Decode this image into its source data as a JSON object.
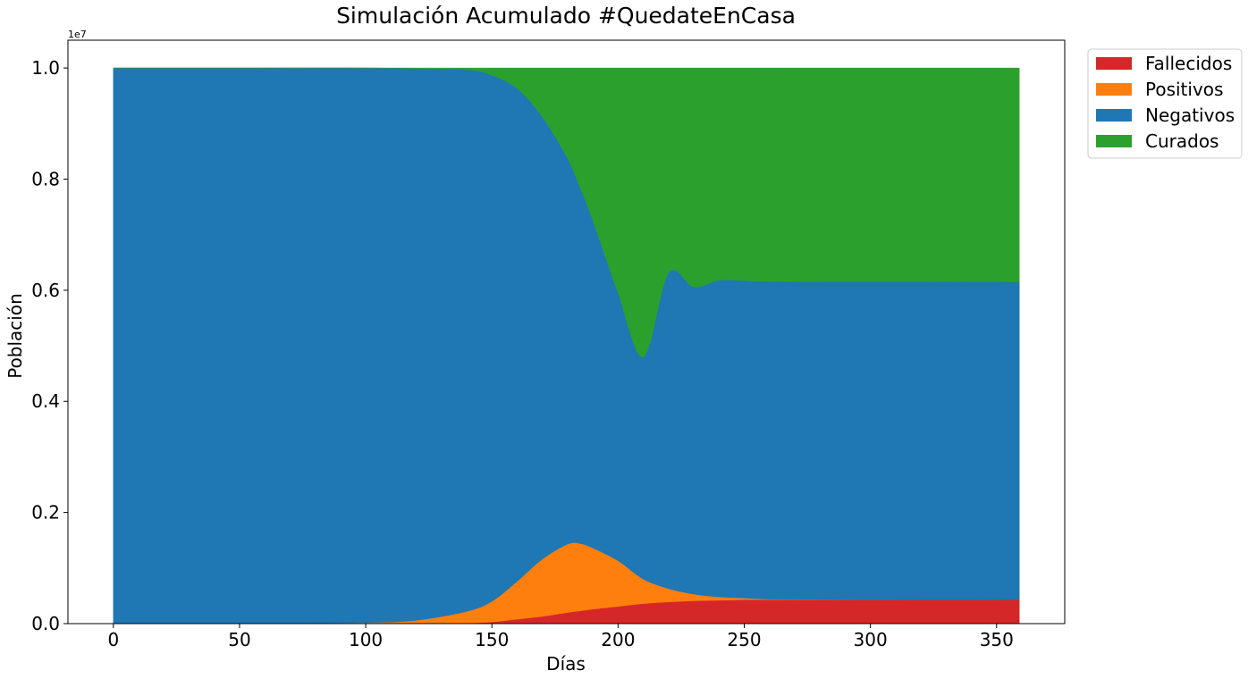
{
  "chart_data": {
    "type": "area",
    "stacked": true,
    "title": "Simulación Acumulado #QuedateEnCasa",
    "xlabel": "Días",
    "ylabel": "Población",
    "y_offset_label": "1e7",
    "xlim": [
      -18,
      377
    ],
    "ylim": [
      0,
      1.05
    ],
    "xticks": [
      0,
      50,
      100,
      150,
      200,
      250,
      300,
      350
    ],
    "xtick_labels": [
      "0",
      "50",
      "100",
      "150",
      "200",
      "250",
      "300",
      "350"
    ],
    "yticks": [
      0,
      0.2,
      0.4,
      0.6,
      0.8,
      1.0
    ],
    "ytick_labels": [
      "0.0",
      "0.2",
      "0.4",
      "0.6",
      "0.8",
      "1.0"
    ],
    "grid": false,
    "legend_position": "outside-top-right",
    "x": [
      0,
      50,
      100,
      120,
      140,
      150,
      160,
      170,
      180,
      185,
      190,
      200,
      210,
      220,
      230,
      240,
      250,
      260,
      280,
      300,
      320,
      340,
      359
    ],
    "series": [
      {
        "name": "Fallecidos",
        "color": "#d62728",
        "values": [
          0,
          0,
          0,
          0,
          0.001,
          0.003,
          0.008,
          0.013,
          0.02,
          0.023,
          0.026,
          0.031,
          0.036,
          0.039,
          0.041,
          0.042,
          0.043,
          0.043,
          0.043,
          0.043,
          0.043,
          0.043,
          0.043
        ]
      },
      {
        "name": "Positivos",
        "color": "#ff7f0e",
        "values": [
          0,
          0.0005,
          0.002,
          0.006,
          0.021,
          0.037,
          0.068,
          0.103,
          0.123,
          0.121,
          0.11,
          0.082,
          0.044,
          0.024,
          0.012,
          0.006,
          0.003,
          0.001,
          0.0005,
          0.0002,
          0.0001,
          0.0001,
          0
        ]
      },
      {
        "name": "Negativos",
        "color": "#1f77b4",
        "values": [
          1.0,
          0.9995,
          0.998,
          0.993,
          0.975,
          0.947,
          0.887,
          0.796,
          0.694,
          0.64,
          0.59,
          0.482,
          0.4,
          0.568,
          0.553,
          0.57,
          0.571,
          0.572,
          0.572,
          0.5723,
          0.5724,
          0.5724,
          0.572
        ]
      },
      {
        "name": "Curados",
        "color": "#2ca02c",
        "values": [
          0,
          0,
          0,
          0.001,
          0.003,
          0.013,
          0.037,
          0.088,
          0.163,
          0.216,
          0.274,
          0.405,
          0.52,
          0.369,
          0.394,
          0.382,
          0.383,
          0.384,
          0.3845,
          0.3845,
          0.3845,
          0.3845,
          0.385
        ]
      }
    ]
  }
}
